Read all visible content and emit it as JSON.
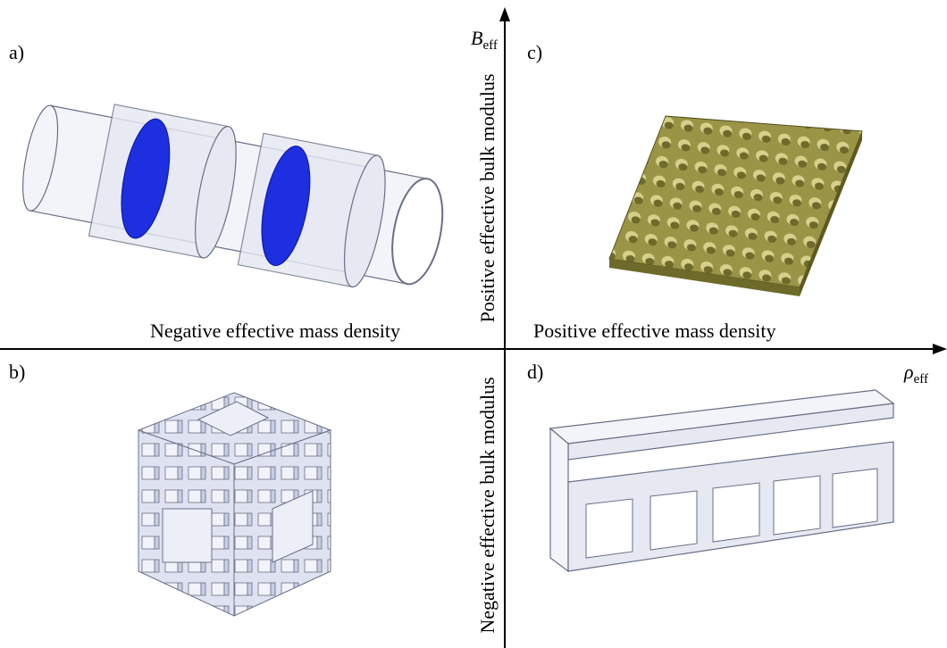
{
  "panels": {
    "a": "a)",
    "b": "b)",
    "c": "c)",
    "d": "d)"
  },
  "axes": {
    "y": {
      "symbol": "B",
      "subscript": "eff"
    },
    "x": {
      "symbol": "ρ",
      "subscript": "eff"
    }
  },
  "quadrants": {
    "negative_mass": "Negative effective mass density",
    "positive_mass": "Positive effective mass density",
    "positive_bulk": "Positive effective bulk modulus",
    "negative_bulk": "Negative effective bulk modulus"
  }
}
